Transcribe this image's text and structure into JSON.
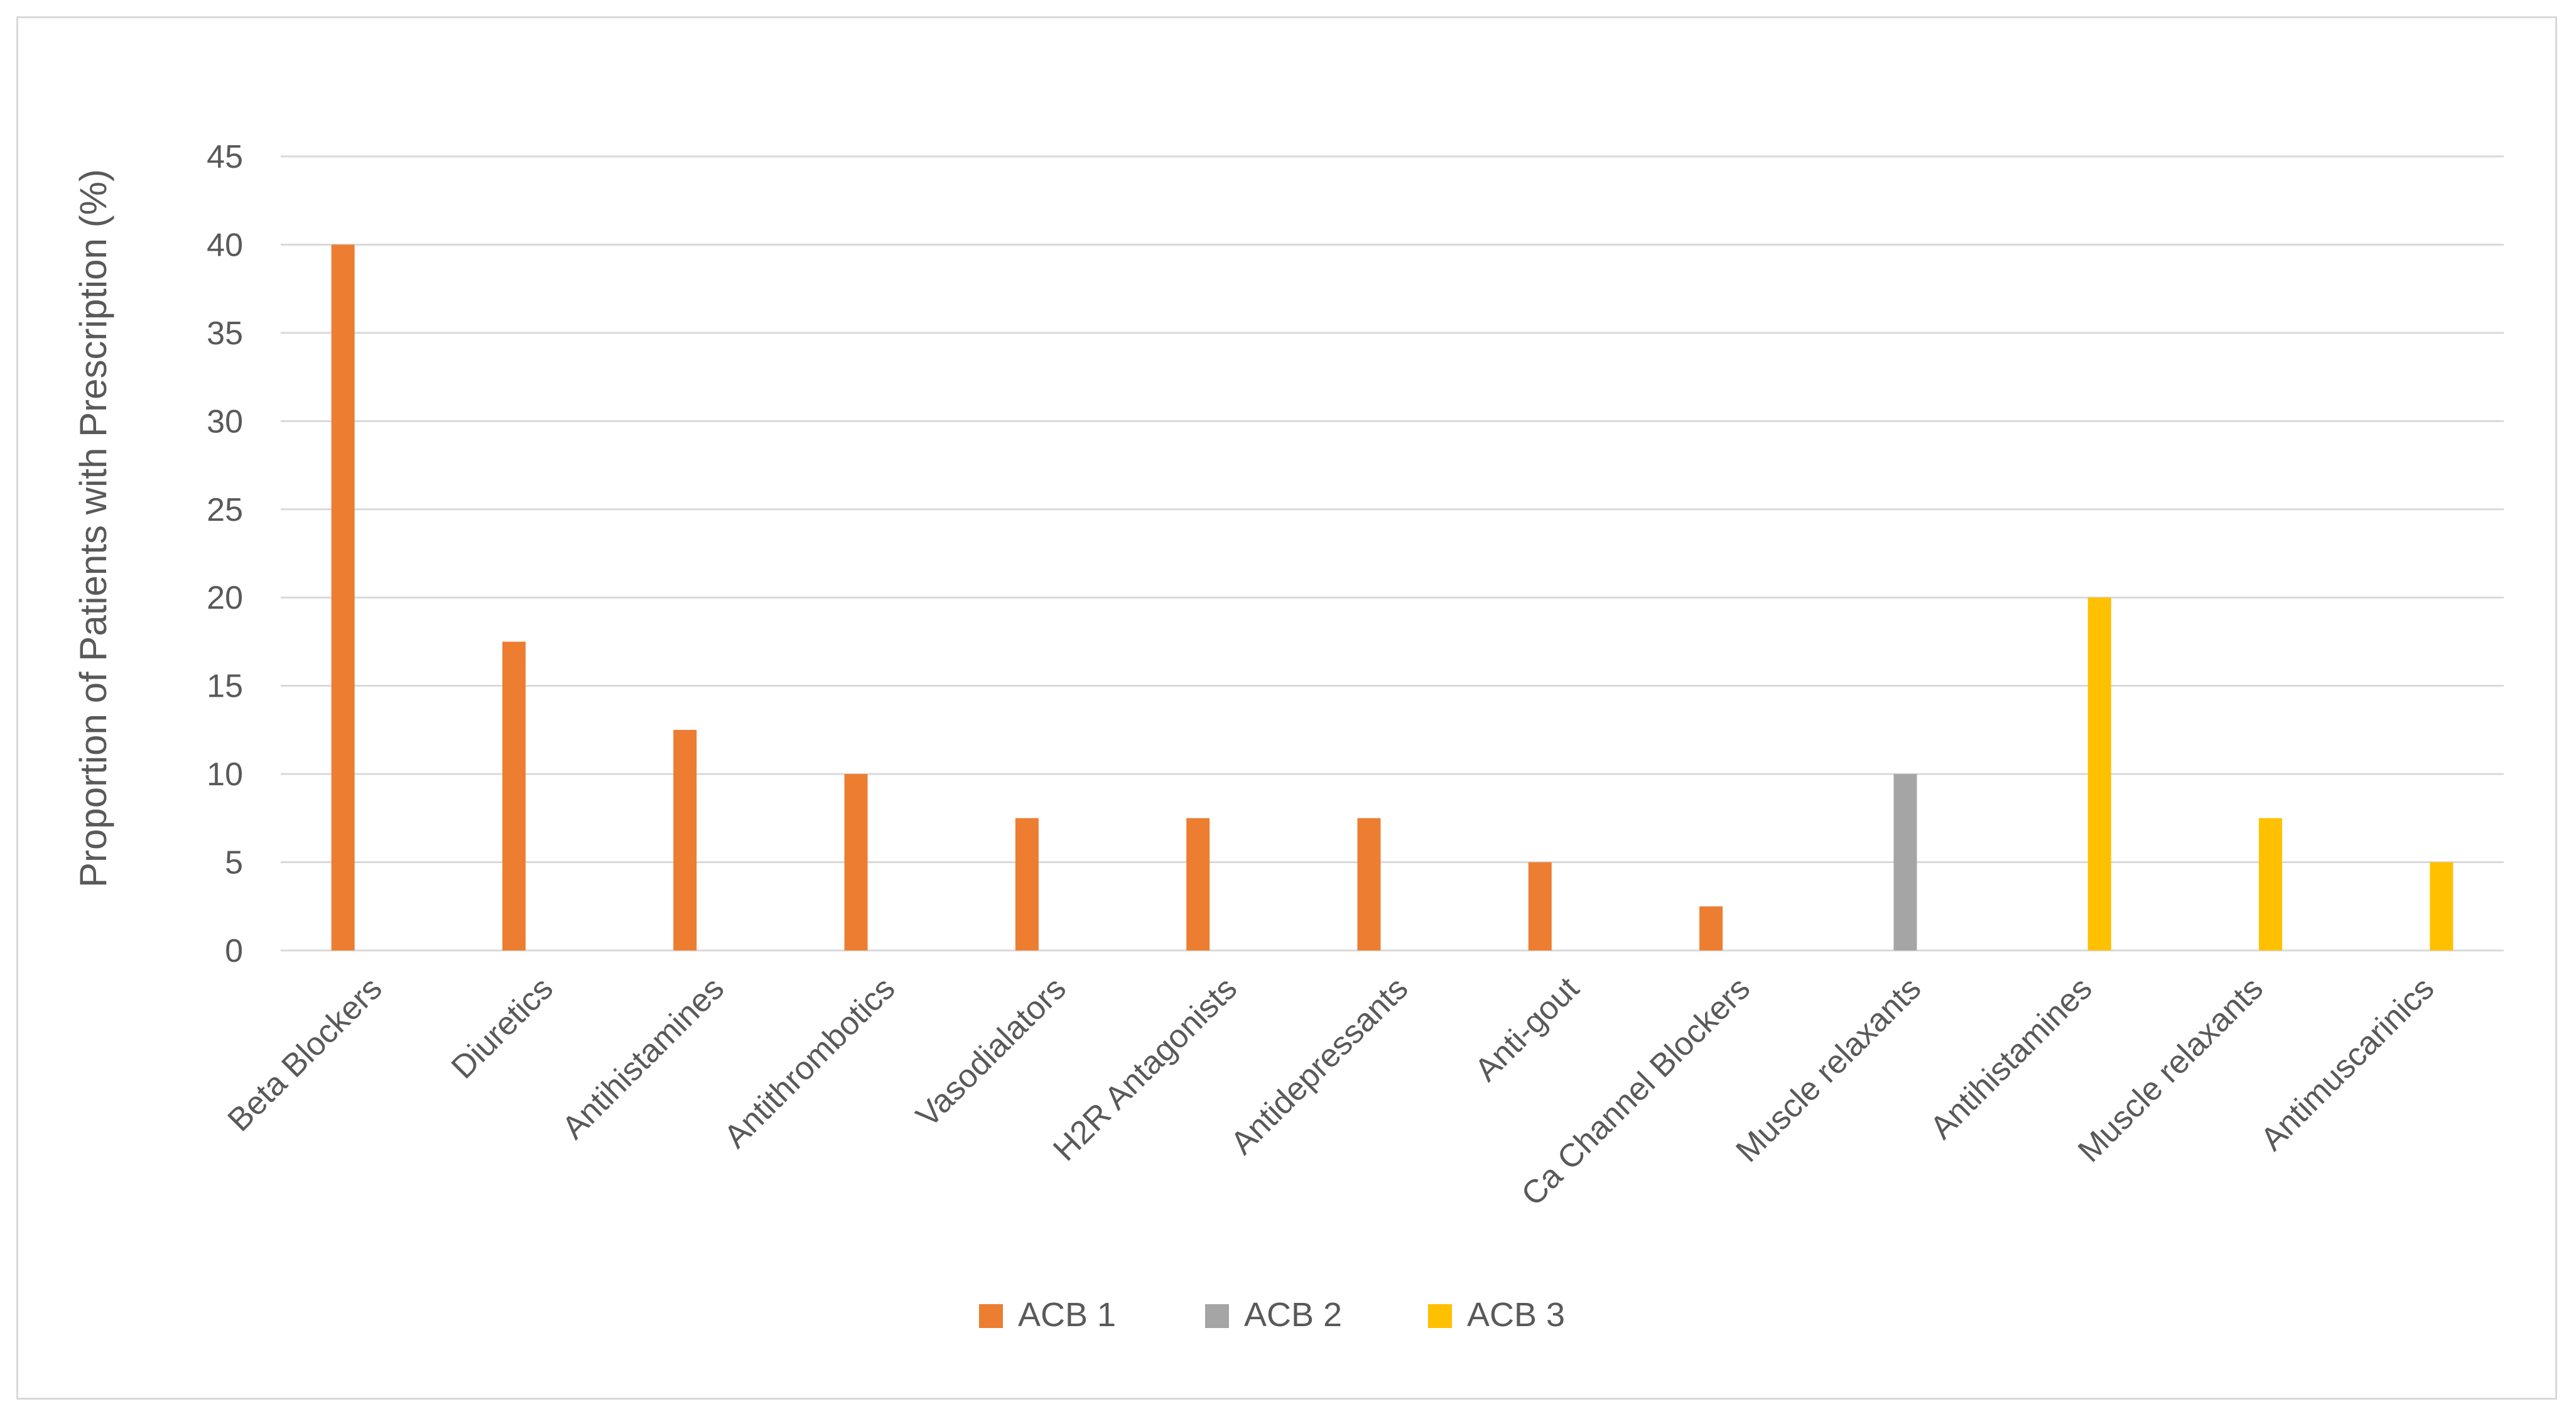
{
  "chart_data": {
    "type": "bar",
    "title": "",
    "xlabel": "",
    "ylabel": "Proportion of Patients with Prescription (%)",
    "ylim": [
      0,
      45
    ],
    "yticks": [
      0,
      5,
      10,
      15,
      20,
      25,
      30,
      35,
      40,
      45
    ],
    "grid": true,
    "legend_position": "bottom",
    "categories": [
      "Beta Blockers",
      "Diuretics",
      "Antihistamines",
      "Antithrombotics",
      "Vasodialators",
      "H2R Antagonists",
      "Antidepressants",
      "Anti-gout",
      "Ca Channel Blockers",
      "Muscle relaxants",
      "Antihistamines",
      "Muscle relaxants",
      "Antimuscarinics"
    ],
    "series": [
      {
        "name": "ACB 1",
        "color": "#ED7D31",
        "values": [
          40,
          17.5,
          12.5,
          10,
          7.5,
          7.5,
          7.5,
          5,
          2.5,
          null,
          null,
          null,
          null
        ]
      },
      {
        "name": "ACB 2",
        "color": "#A5A5A5",
        "values": [
          null,
          null,
          null,
          null,
          null,
          null,
          null,
          null,
          null,
          10,
          null,
          null,
          null
        ]
      },
      {
        "name": "ACB 3",
        "color": "#FFC000",
        "values": [
          null,
          null,
          null,
          null,
          null,
          null,
          null,
          null,
          null,
          null,
          20,
          7.5,
          5
        ]
      }
    ]
  },
  "colors": {
    "gridline": "#d9d9d9",
    "axis_line": "#d9d9d9",
    "text": "#595959"
  }
}
